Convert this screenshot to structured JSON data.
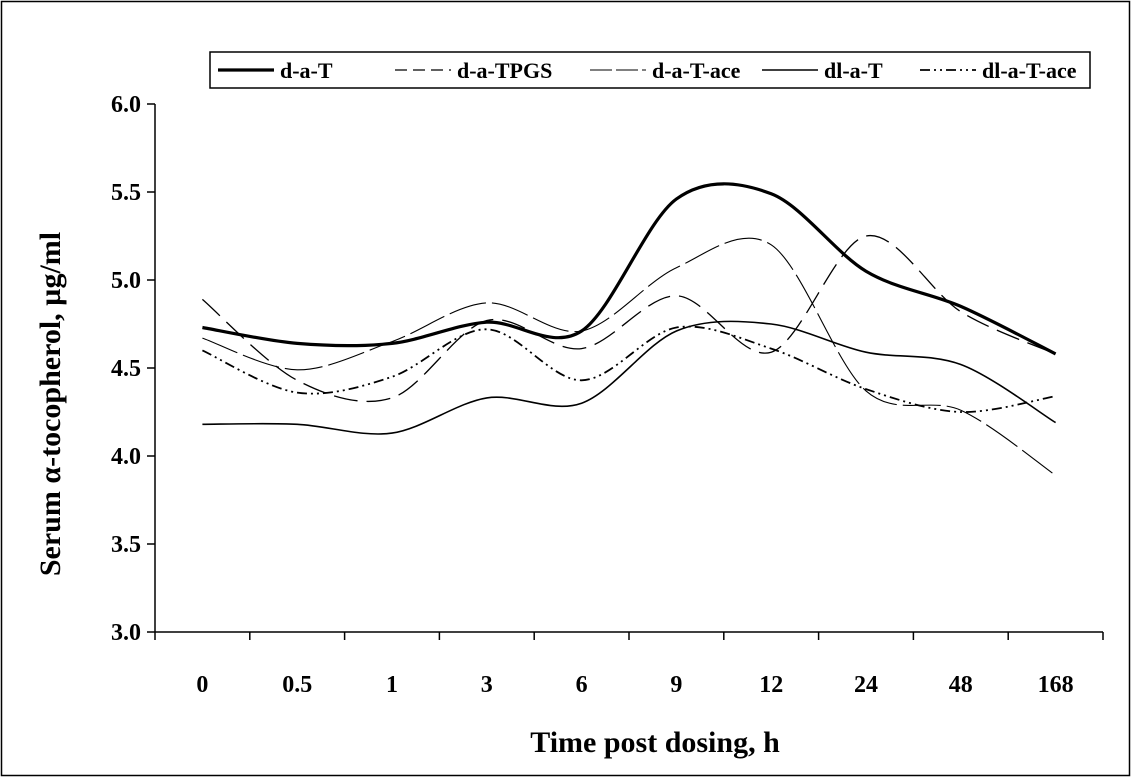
{
  "chart_data": {
    "type": "line",
    "title": "",
    "xlabel": "Time post dosing, h",
    "ylabel": "Serum α-tocopherol, µg/ml",
    "categories": [
      "0",
      "0.5",
      "1",
      "3",
      "6",
      "9",
      "12",
      "24",
      "48",
      "168"
    ],
    "ylim": [
      3.0,
      6.0
    ],
    "yticks": [
      "3.0",
      "3.5",
      "4.0",
      "4.5",
      "5.0",
      "5.5",
      "6.0"
    ],
    "grid": false,
    "legend_position": "top",
    "series": [
      {
        "name": "d-a-T",
        "style": "thick-solid",
        "color": "#000000",
        "values": [
          4.73,
          4.64,
          4.64,
          4.76,
          4.71,
          5.46,
          5.49,
          5.05,
          4.85,
          4.58
        ]
      },
      {
        "name": "d-a-TPGS",
        "style": "long-dash",
        "color": "#000000",
        "values": [
          4.89,
          4.43,
          4.33,
          4.77,
          4.61,
          4.91,
          4.59,
          5.25,
          4.82,
          4.58
        ]
      },
      {
        "name": "d-a-T-ace",
        "style": "long-dash-light",
        "color": "#000000",
        "values": [
          4.67,
          4.49,
          4.65,
          4.87,
          4.71,
          5.07,
          5.2,
          4.37,
          4.26,
          3.89
        ]
      },
      {
        "name": "dl-a-T",
        "style": "thin-solid",
        "color": "#000000",
        "values": [
          4.18,
          4.18,
          4.13,
          4.33,
          4.3,
          4.71,
          4.75,
          4.59,
          4.52,
          4.19
        ]
      },
      {
        "name": "dl-a-T-ace",
        "style": "dash-dot-dot",
        "color": "#000000",
        "values": [
          4.6,
          4.36,
          4.45,
          4.72,
          4.43,
          4.73,
          4.61,
          4.38,
          4.25,
          4.34
        ]
      }
    ]
  }
}
